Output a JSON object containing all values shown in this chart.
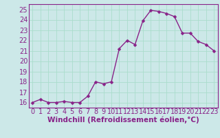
{
  "x": [
    0,
    1,
    2,
    3,
    4,
    5,
    6,
    7,
    8,
    9,
    10,
    11,
    12,
    13,
    14,
    15,
    16,
    17,
    18,
    19,
    20,
    21,
    22,
    23
  ],
  "y": [
    16.0,
    16.3,
    16.0,
    16.0,
    16.1,
    16.0,
    16.0,
    16.6,
    18.0,
    17.8,
    18.0,
    21.2,
    22.0,
    21.6,
    23.9,
    24.9,
    24.8,
    24.6,
    24.3,
    22.7,
    22.7,
    21.9,
    21.6,
    21.0
  ],
  "line_color": "#882288",
  "marker": "D",
  "marker_size": 2.5,
  "line_width": 1.0,
  "xlabel": "Windchill (Refroidissement éolien,°C)",
  "xlim_min": -0.5,
  "xlim_max": 23.5,
  "ylim_min": 15.5,
  "ylim_max": 25.5,
  "yticks": [
    16,
    17,
    18,
    19,
    20,
    21,
    22,
    23,
    24,
    25
  ],
  "xtick_labels": [
    "0",
    "1",
    "2",
    "3",
    "4",
    "5",
    "6",
    "7",
    "8",
    "9",
    "10",
    "11",
    "12",
    "13",
    "14",
    "15",
    "16",
    "17",
    "18",
    "19",
    "20",
    "21",
    "22",
    "23"
  ],
  "grid_color": "#aaddcc",
  "bg_color": "#cce8e8",
  "xlabel_fontsize": 7.5,
  "tick_fontsize": 7.0,
  "tick_color": "#882288",
  "xlabel_color": "#882288",
  "spine_color": "#882288"
}
